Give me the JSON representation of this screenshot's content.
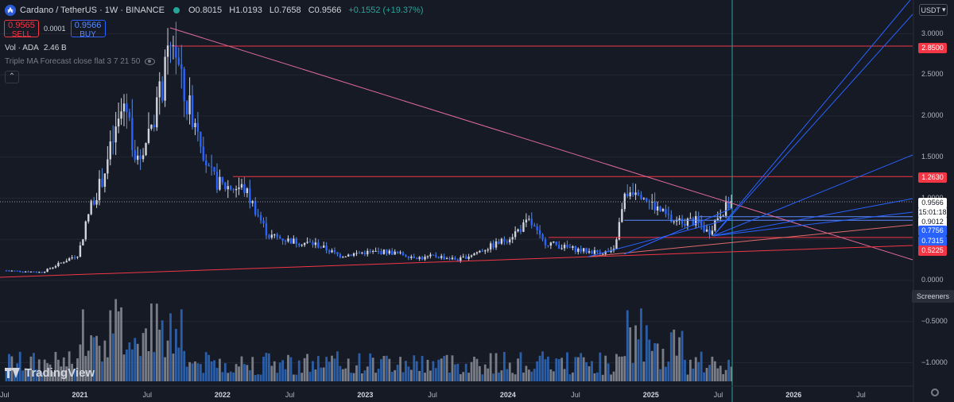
{
  "header": {
    "symbol": "Cardano / TetherUS · 1W · BINANCE",
    "open": "O0.8015",
    "high": "H1.0193",
    "low": "L0.7658",
    "close": "C0.9566",
    "change": "+0.1552 (+19.37%)"
  },
  "trade": {
    "sell_price": "0.9565",
    "sell_label": "SELL",
    "spread": "0.0001",
    "buy_price": "0.9566",
    "buy_label": "BUY"
  },
  "volume": {
    "label": "Vol · ADA",
    "value": "2.46 B"
  },
  "indicator": {
    "label": "Triple MA Forecast close flat 3 7 21 50"
  },
  "currency_button": "USDT",
  "logo_text": "TradingView",
  "screeners": "Screeners",
  "colors": {
    "up": "#26a69a",
    "down": "#ef5350",
    "level_line": "#f23645",
    "trend_pink": "#e06a9a",
    "fan_blue": "#2962ff"
  },
  "price_axis": [
    "3.0000",
    "2.5000",
    "2.0000",
    "1.5000",
    "1.0000",
    "0.5000",
    "0.0000",
    "−0.5000",
    "−1.0000"
  ],
  "price_labels": [
    {
      "text": "2.8500",
      "kind": "red"
    },
    {
      "text": "1.2630",
      "kind": "red"
    },
    {
      "text": "0.9566",
      "kind": "white"
    },
    {
      "text": "15:01:18",
      "kind": "white"
    },
    {
      "text": "0.9012",
      "kind": "white"
    },
    {
      "text": "0.7756",
      "kind": "blue"
    },
    {
      "text": "0.7315",
      "kind": "blue"
    },
    {
      "text": "0.5225",
      "kind": "red"
    }
  ],
  "time_axis": [
    {
      "text": "Jul",
      "year": false
    },
    {
      "text": "2021",
      "year": true
    },
    {
      "text": "Jul",
      "year": false
    },
    {
      "text": "2022",
      "year": true
    },
    {
      "text": "Jul",
      "year": false
    },
    {
      "text": "2023",
      "year": true
    },
    {
      "text": "Jul",
      "year": false
    },
    {
      "text": "2024",
      "year": true
    },
    {
      "text": "Jul",
      "year": false
    },
    {
      "text": "2025",
      "year": true
    },
    {
      "text": "Jul",
      "year": false
    },
    {
      "text": "2026",
      "year": true
    },
    {
      "text": "Jul",
      "year": false
    }
  ],
  "chart_data": {
    "type": "candlestick",
    "interval": "1W",
    "y_scale": "linear",
    "ylim": [
      -1.2,
      3.3
    ],
    "price_levels": [
      2.85,
      1.263,
      0.9012,
      0.7756,
      0.7315,
      0.5225
    ],
    "last_price": 0.9566,
    "price_path": [
      [
        "2020-07",
        0.12
      ],
      [
        "2020-10",
        0.1
      ],
      [
        "2021-01",
        0.32
      ],
      [
        "2021-02",
        0.9
      ],
      [
        "2021-03",
        1.2
      ],
      [
        "2021-05",
        2.2
      ],
      [
        "2021-06",
        1.4
      ],
      [
        "2021-08",
        2.3
      ],
      [
        "2021-09",
        2.95
      ],
      [
        "2021-10",
        2.15
      ],
      [
        "2021-11",
        1.95
      ],
      [
        "2021-12",
        1.3
      ],
      [
        "2022-01",
        1.15
      ],
      [
        "2022-03",
        1.12
      ],
      [
        "2022-04",
        0.85
      ],
      [
        "2022-05",
        0.55
      ],
      [
        "2022-07",
        0.48
      ],
      [
        "2022-09",
        0.44
      ],
      [
        "2022-11",
        0.3
      ],
      [
        "2023-01",
        0.34
      ],
      [
        "2023-03",
        0.35
      ],
      [
        "2023-06",
        0.27
      ],
      [
        "2023-07",
        0.3
      ],
      [
        "2023-09",
        0.25
      ],
      [
        "2023-11",
        0.37
      ],
      [
        "2024-01",
        0.5
      ],
      [
        "2024-03",
        0.72
      ],
      [
        "2024-04",
        0.48
      ],
      [
        "2024-06",
        0.4
      ],
      [
        "2024-08",
        0.35
      ],
      [
        "2024-10",
        0.34
      ],
      [
        "2024-11",
        1.05
      ],
      [
        "2024-12",
        1.15
      ],
      [
        "2025-01",
        0.95
      ],
      [
        "2025-03",
        0.72
      ],
      [
        "2025-05",
        0.72
      ],
      [
        "2025-06",
        0.58
      ],
      [
        "2025-07",
        0.83
      ],
      [
        "2025-08",
        0.9566
      ]
    ],
    "volume_profile": "weekly bars, larger in early 2021 and late 2024"
  }
}
